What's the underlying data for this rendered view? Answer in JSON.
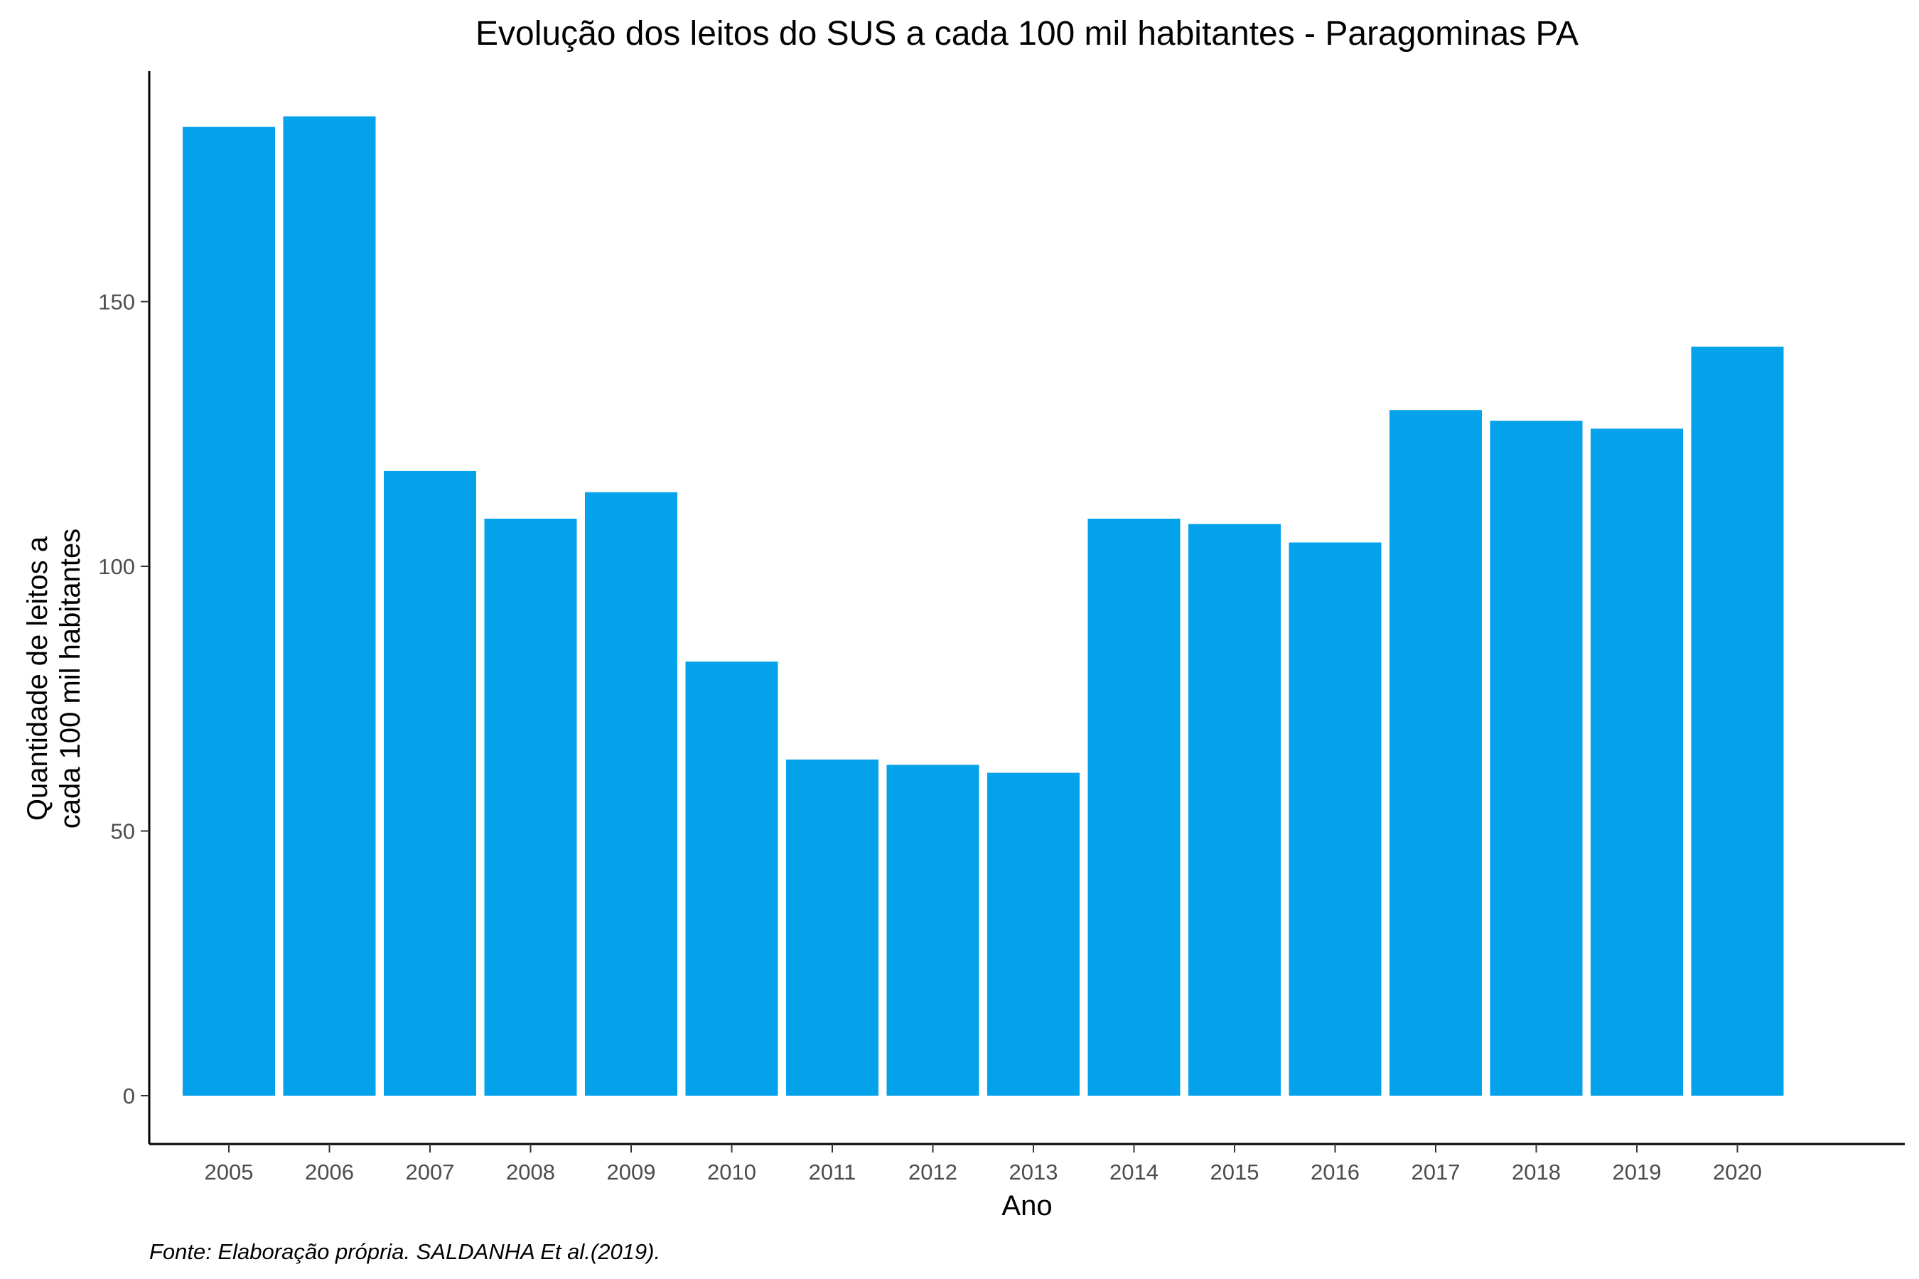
{
  "chart_data": {
    "type": "bar",
    "title": "Evolução dos leitos do SUS a cada 100 mil habitantes -  Paragominas PA",
    "xlabel": "Ano",
    "ylabel_lines": [
      "Quantidade de leitos a",
      "cada 100 mil habitantes"
    ],
    "caption": "Fonte: Elaboração própria. SALDANHA Et al.(2019).",
    "categories": [
      "2005",
      "2006",
      "2007",
      "2008",
      "2009",
      "2010",
      "2011",
      "2012",
      "2013",
      "2014",
      "2015",
      "2016",
      "2017",
      "2018",
      "2019",
      "2020"
    ],
    "values": [
      183,
      185,
      118,
      109,
      114,
      82,
      63.5,
      62.5,
      61,
      109,
      108,
      104.5,
      129.5,
      127.5,
      126,
      141.5
    ],
    "yticks": [
      0,
      50,
      100,
      150
    ],
    "ylim": [
      -8.5,
      193
    ],
    "bar_color": "#03A2EA",
    "grid": false,
    "legend": "none"
  }
}
